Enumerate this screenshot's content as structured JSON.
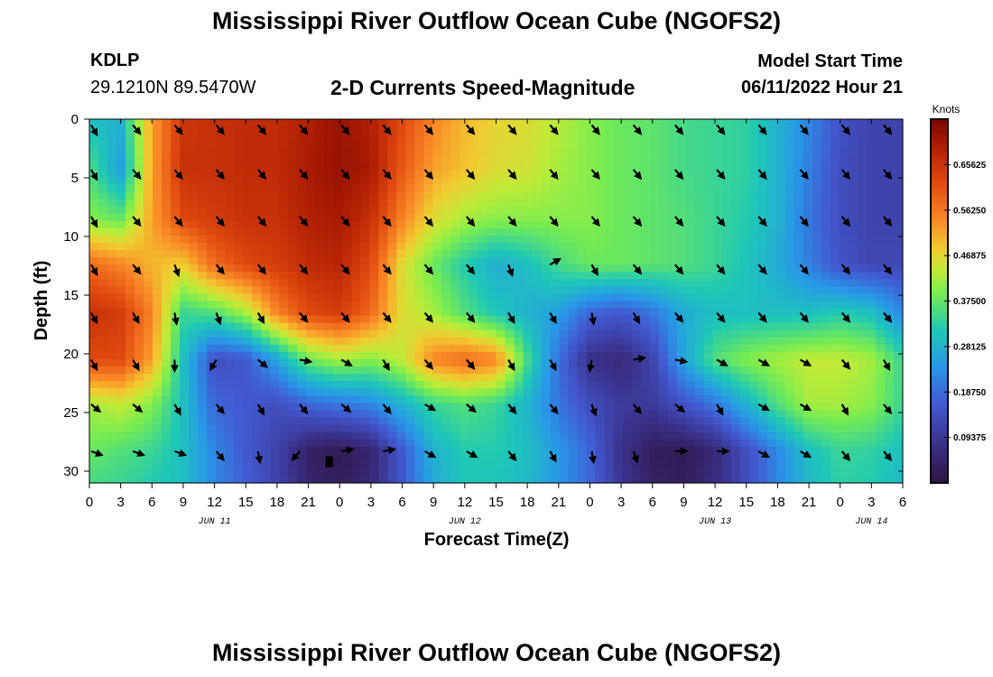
{
  "header": {
    "title": "Mississippi River Outflow Ocean Cube (NGOFS2)",
    "title_repeat": "Mississippi River Outflow Ocean Cube (NGOFS2)",
    "station": "KDLP",
    "coordinates": "29.1210N  89.5470W",
    "subtitle": "2-D Currents Speed-Magnitude",
    "model_start_label": "Model Start Time",
    "model_start_value": "06/11/2022 Hour 21"
  },
  "chart_data": {
    "type": "heatmap",
    "xlabel": "Forecast Time(Z)",
    "ylabel": "Depth (ft)",
    "x_range_hours_from_jun11_00": [
      0,
      78
    ],
    "ylim_ft": [
      0,
      31
    ],
    "x_tick_labels": [
      "0",
      "3",
      "6",
      "9",
      "12",
      "15",
      "18",
      "21",
      "0",
      "3",
      "6",
      "9",
      "12",
      "15",
      "18",
      "21",
      "0",
      "3",
      "6",
      "9",
      "12",
      "15",
      "18",
      "21",
      "0",
      "3",
      "6"
    ],
    "x_tick_hours": [
      0,
      3,
      6,
      9,
      12,
      15,
      18,
      21,
      24,
      27,
      30,
      33,
      36,
      39,
      42,
      45,
      48,
      51,
      54,
      57,
      60,
      63,
      66,
      69,
      72,
      75,
      78
    ],
    "y_ticks": [
      0,
      5,
      10,
      15,
      20,
      25,
      30
    ],
    "date_labels": [
      {
        "text": "JUN 11",
        "hour": 12
      },
      {
        "text": "JUN 12",
        "hour": 36
      },
      {
        "text": "JUN 13",
        "hour": 60
      },
      {
        "text": "JUN 14",
        "hour": 75
      }
    ],
    "colorbar": {
      "unit": "Knots",
      "range": [
        0,
        0.75
      ],
      "tick_values": [
        0.09375,
        0.1875,
        0.28125,
        0.375,
        0.46875,
        0.5625,
        0.65625
      ],
      "tick_labels": [
        "0.09375",
        "0.18750",
        "0.28125",
        "0.37500",
        "0.46875",
        "0.56250",
        "0.65625"
      ]
    },
    "value_time_hours": [
      0,
      3,
      6,
      9,
      12,
      15,
      18,
      21,
      24,
      27,
      30,
      33,
      36,
      39,
      42,
      45,
      48,
      51,
      54,
      57,
      60,
      63,
      66,
      69,
      72,
      75,
      78
    ],
    "value_depths_ft": [
      0,
      4.3,
      8.6,
      12.4,
      16.5,
      20.5,
      24.3,
      28.3,
      31
    ],
    "speed_knots": [
      [
        0.3,
        0.28,
        0.52,
        0.65,
        0.66,
        0.67,
        0.67,
        0.69,
        0.72,
        0.69,
        0.62,
        0.55,
        0.5,
        0.47,
        0.46,
        0.43,
        0.4,
        0.38,
        0.37,
        0.35,
        0.34,
        0.33,
        0.28,
        0.22,
        0.15,
        0.12,
        0.12
      ],
      [
        0.36,
        0.25,
        0.52,
        0.66,
        0.66,
        0.67,
        0.67,
        0.7,
        0.72,
        0.7,
        0.6,
        0.52,
        0.49,
        0.46,
        0.45,
        0.42,
        0.4,
        0.38,
        0.37,
        0.35,
        0.34,
        0.33,
        0.28,
        0.21,
        0.14,
        0.12,
        0.12
      ],
      [
        0.4,
        0.38,
        0.52,
        0.62,
        0.64,
        0.66,
        0.66,
        0.69,
        0.7,
        0.66,
        0.55,
        0.46,
        0.42,
        0.4,
        0.4,
        0.4,
        0.4,
        0.38,
        0.37,
        0.36,
        0.34,
        0.32,
        0.28,
        0.2,
        0.14,
        0.12,
        0.12
      ],
      [
        0.58,
        0.55,
        0.5,
        0.48,
        0.58,
        0.62,
        0.64,
        0.67,
        0.68,
        0.62,
        0.46,
        0.38,
        0.32,
        0.27,
        0.3,
        0.35,
        0.38,
        0.38,
        0.37,
        0.36,
        0.34,
        0.31,
        0.27,
        0.21,
        0.15,
        0.13,
        0.13
      ],
      [
        0.66,
        0.64,
        0.55,
        0.34,
        0.36,
        0.42,
        0.55,
        0.62,
        0.64,
        0.58,
        0.46,
        0.42,
        0.36,
        0.31,
        0.28,
        0.25,
        0.18,
        0.16,
        0.2,
        0.27,
        0.3,
        0.3,
        0.3,
        0.3,
        0.32,
        0.3,
        0.22
      ],
      [
        0.62,
        0.62,
        0.52,
        0.3,
        0.14,
        0.16,
        0.26,
        0.38,
        0.42,
        0.4,
        0.44,
        0.55,
        0.58,
        0.55,
        0.35,
        0.19,
        0.08,
        0.06,
        0.12,
        0.26,
        0.36,
        0.4,
        0.42,
        0.44,
        0.44,
        0.42,
        0.34
      ],
      [
        0.42,
        0.44,
        0.4,
        0.3,
        0.18,
        0.16,
        0.14,
        0.18,
        0.2,
        0.22,
        0.28,
        0.34,
        0.36,
        0.34,
        0.28,
        0.2,
        0.14,
        0.1,
        0.1,
        0.15,
        0.2,
        0.28,
        0.36,
        0.42,
        0.42,
        0.4,
        0.34
      ],
      [
        0.38,
        0.36,
        0.34,
        0.3,
        0.22,
        0.16,
        0.12,
        0.04,
        0.02,
        0.05,
        0.16,
        0.28,
        0.32,
        0.32,
        0.3,
        0.24,
        0.18,
        0.08,
        0.03,
        0.02,
        0.06,
        0.14,
        0.22,
        0.3,
        0.34,
        0.33,
        0.3
      ],
      [
        0.35,
        0.34,
        0.32,
        0.3,
        0.22,
        0.17,
        0.12,
        0.05,
        0.03,
        0.06,
        0.16,
        0.27,
        0.31,
        0.31,
        0.29,
        0.24,
        0.18,
        0.09,
        0.04,
        0.03,
        0.07,
        0.14,
        0.22,
        0.29,
        0.33,
        0.32,
        0.29
      ]
    ],
    "arrow_time_hours": [
      0,
      4,
      8,
      12,
      16,
      20,
      24,
      28,
      32,
      36,
      40,
      44,
      48,
      52,
      56,
      60,
      64,
      68,
      72,
      76
    ],
    "arrow_depths_ft": [
      0.5,
      4.3,
      8.3,
      12.4,
      16.5,
      20.5,
      24.3,
      28.3
    ],
    "direction_deg_to": [
      [
        150,
        140,
        140,
        140,
        140,
        140,
        140,
        140,
        140,
        140,
        140,
        140,
        140,
        140,
        140,
        140,
        140,
        140,
        140,
        140
      ],
      [
        150,
        140,
        140,
        140,
        140,
        140,
        140,
        140,
        140,
        140,
        140,
        140,
        140,
        140,
        140,
        140,
        140,
        140,
        140,
        140
      ],
      [
        150,
        140,
        140,
        140,
        140,
        140,
        140,
        140,
        140,
        140,
        140,
        140,
        140,
        140,
        140,
        140,
        140,
        140,
        140,
        140
      ],
      [
        150,
        140,
        160,
        140,
        140,
        140,
        140,
        140,
        140,
        140,
        160,
        60,
        150,
        140,
        140,
        140,
        140,
        140,
        140,
        140
      ],
      [
        150,
        150,
        170,
        160,
        150,
        140,
        140,
        140,
        140,
        140,
        150,
        150,
        170,
        150,
        140,
        140,
        140,
        140,
        140,
        140
      ],
      [
        150,
        150,
        180,
        210,
        130,
        100,
        120,
        150,
        140,
        140,
        150,
        150,
        190,
        80,
        100,
        120,
        120,
        120,
        140,
        150
      ],
      [
        130,
        130,
        150,
        140,
        150,
        140,
        130,
        140,
        120,
        130,
        140,
        140,
        160,
        140,
        130,
        150,
        120,
        120,
        150,
        140
      ],
      [
        110,
        110,
        110,
        140,
        170,
        220,
        80,
        80,
        120,
        120,
        140,
        150,
        170,
        160,
        90,
        90,
        120,
        120,
        140,
        140
      ]
    ],
    "marker": {
      "hour": 23,
      "depth_ft": 29.2,
      "label": "black box"
    }
  }
}
